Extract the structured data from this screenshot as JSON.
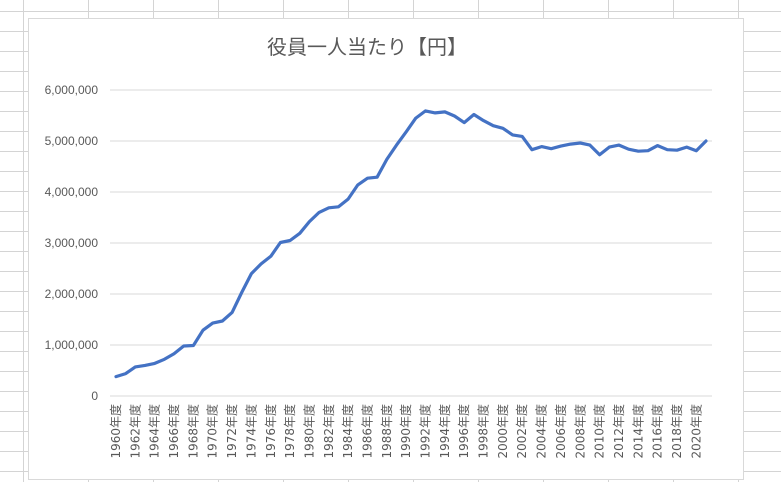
{
  "chart_data": {
    "type": "line",
    "title": "役員一人当たり【円】",
    "xlabel": "",
    "ylabel": "",
    "ylim": [
      0,
      6000000
    ],
    "yticks": [
      0,
      1000000,
      2000000,
      3000000,
      4000000,
      5000000,
      6000000
    ],
    "ytick_labels": [
      "0",
      "1,000,000",
      "2,000,000",
      "3,000,000",
      "4,000,000",
      "5,000,000",
      "6,000,000"
    ],
    "grid": true,
    "legend": "none",
    "line_color": "#4472C4",
    "x_tick_labels": [
      "1960年度",
      "1962年度",
      "1964年度",
      "1966年度",
      "1968年度",
      "1970年度",
      "1972年度",
      "1974年度",
      "1976年度",
      "1978年度",
      "1980年度",
      "1982年度",
      "1984年度",
      "1986年度",
      "1988年度",
      "1990年度",
      "1992年度",
      "1994年度",
      "1996年度",
      "1998年度",
      "2000年度",
      "2002年度",
      "2004年度",
      "2006年度",
      "2008年度",
      "2010年度",
      "2012年度",
      "2014年度",
      "2016年度",
      "2018年度",
      "2020年度"
    ],
    "x": [
      1960,
      1961,
      1962,
      1963,
      1964,
      1965,
      1966,
      1967,
      1968,
      1969,
      1970,
      1971,
      1972,
      1973,
      1974,
      1975,
      1976,
      1977,
      1978,
      1979,
      1980,
      1981,
      1982,
      1983,
      1984,
      1985,
      1986,
      1987,
      1988,
      1989,
      1990,
      1991,
      1992,
      1993,
      1994,
      1995,
      1996,
      1997,
      1998,
      1999,
      2000,
      2001,
      2002,
      2003,
      2004,
      2005,
      2006,
      2007,
      2008,
      2009,
      2010,
      2011,
      2012,
      2013,
      2014,
      2015,
      2016,
      2017,
      2018,
      2019,
      2020,
      2021
    ],
    "values": [
      380000,
      440000,
      570000,
      600000,
      640000,
      720000,
      830000,
      980000,
      990000,
      1290000,
      1430000,
      1470000,
      1640000,
      2030000,
      2400000,
      2590000,
      2740000,
      3010000,
      3050000,
      3190000,
      3420000,
      3600000,
      3690000,
      3710000,
      3860000,
      4140000,
      4270000,
      4290000,
      4640000,
      4920000,
      5180000,
      5450000,
      5590000,
      5550000,
      5570000,
      5490000,
      5360000,
      5520000,
      5400000,
      5300000,
      5250000,
      5120000,
      5090000,
      4830000,
      4890000,
      4850000,
      4900000,
      4940000,
      4960000,
      4920000,
      4730000,
      4880000,
      4920000,
      4840000,
      4800000,
      4810000,
      4910000,
      4830000,
      4820000,
      4880000,
      4810000,
      5000000
    ]
  }
}
